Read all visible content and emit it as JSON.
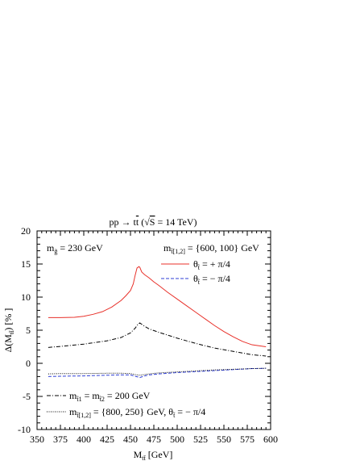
{
  "chart_data": {
    "type": "line",
    "title": "pp → tt̄ (√S = 14 TeV)",
    "xlabel": "M_tt̄ [GeV]",
    "ylabel": "Δ(M_tt̄) [%]",
    "xlim": [
      350,
      600
    ],
    "ylim": [
      -10,
      20
    ],
    "x_ticks": [
      350,
      375,
      400,
      425,
      450,
      475,
      500,
      525,
      550,
      575,
      600
    ],
    "y_ticks": [
      -10,
      -5,
      0,
      5,
      10,
      15,
      20
    ],
    "grid": false,
    "annotations": {
      "gluino_mass": "m_g̃ = 230 GeV",
      "stop_masses_header": "m_t̃[1,2] = {600, 100} GeV",
      "legend_note": "m_t̃1 = m_t̃2 = 200 GeV",
      "legend_note2": "m_t̃[1,2] = {800, 250} GeV,  θ_t̃ = − π/4"
    },
    "legend": {
      "top_right": [
        "θ_t̃ = + π/4",
        "θ_t̃ = − π/4"
      ],
      "bottom_left": [
        "m_t̃1 = m_t̃2 = 200 GeV",
        "m_t̃[1,2] = {800, 250} GeV,  θ_t̃ = − π/4"
      ]
    },
    "series": [
      {
        "name": "θ_t̃ = + π/4",
        "color": "#e8312a",
        "style": "solid",
        "x": [
          362,
          375,
          390,
          400,
          410,
          420,
          430,
          440,
          445,
          450,
          453,
          455,
          457,
          459,
          460,
          462,
          465,
          470,
          475,
          480,
          490,
          500,
          510,
          520,
          530,
          540,
          550,
          560,
          570,
          580,
          595
        ],
        "y": [
          6.9,
          6.9,
          6.95,
          7.1,
          7.4,
          7.8,
          8.5,
          9.5,
          10.2,
          11.0,
          12.0,
          13.3,
          14.4,
          14.6,
          14.5,
          13.8,
          13.4,
          12.9,
          12.3,
          11.8,
          10.7,
          9.7,
          8.7,
          7.7,
          6.7,
          5.7,
          4.8,
          4.0,
          3.3,
          2.8,
          2.5
        ]
      },
      {
        "name": "θ_t̃ = − π/4",
        "color": "#2f3fd6",
        "style": "dashed",
        "x": [
          362,
          375,
          400,
          425,
          440,
          450,
          455,
          460,
          465,
          470,
          480,
          500,
          520,
          540,
          560,
          580,
          595
        ],
        "y": [
          -2.0,
          -1.95,
          -1.9,
          -1.8,
          -1.75,
          -1.75,
          -1.95,
          -2.15,
          -1.9,
          -1.75,
          -1.6,
          -1.4,
          -1.25,
          -1.1,
          -0.95,
          -0.8,
          -0.75
        ]
      },
      {
        "name": "m_t̃1 = m_t̃2 = 200 GeV",
        "color": "#000000",
        "style": "dashdot",
        "x": [
          362,
          375,
          400,
          425,
          440,
          450,
          455,
          458,
          460,
          462,
          465,
          470,
          480,
          500,
          520,
          540,
          560,
          580,
          595
        ],
        "y": [
          2.4,
          2.55,
          2.9,
          3.4,
          3.9,
          4.6,
          5.3,
          5.9,
          6.1,
          5.9,
          5.6,
          5.2,
          4.7,
          3.8,
          3.0,
          2.3,
          1.8,
          1.3,
          1.1
        ]
      },
      {
        "name": "m_t̃[1,2] = {800, 250} GeV,  θ_t̃ = − π/4",
        "color": "#000000",
        "style": "dotted",
        "x": [
          362,
          375,
          400,
          425,
          440,
          450,
          455,
          460,
          465,
          470,
          480,
          500,
          520,
          540,
          560,
          580,
          595
        ],
        "y": [
          -1.6,
          -1.55,
          -1.55,
          -1.5,
          -1.5,
          -1.55,
          -1.7,
          -1.8,
          -1.7,
          -1.6,
          -1.45,
          -1.3,
          -1.15,
          -1.0,
          -0.9,
          -0.8,
          -0.75
        ]
      }
    ]
  }
}
